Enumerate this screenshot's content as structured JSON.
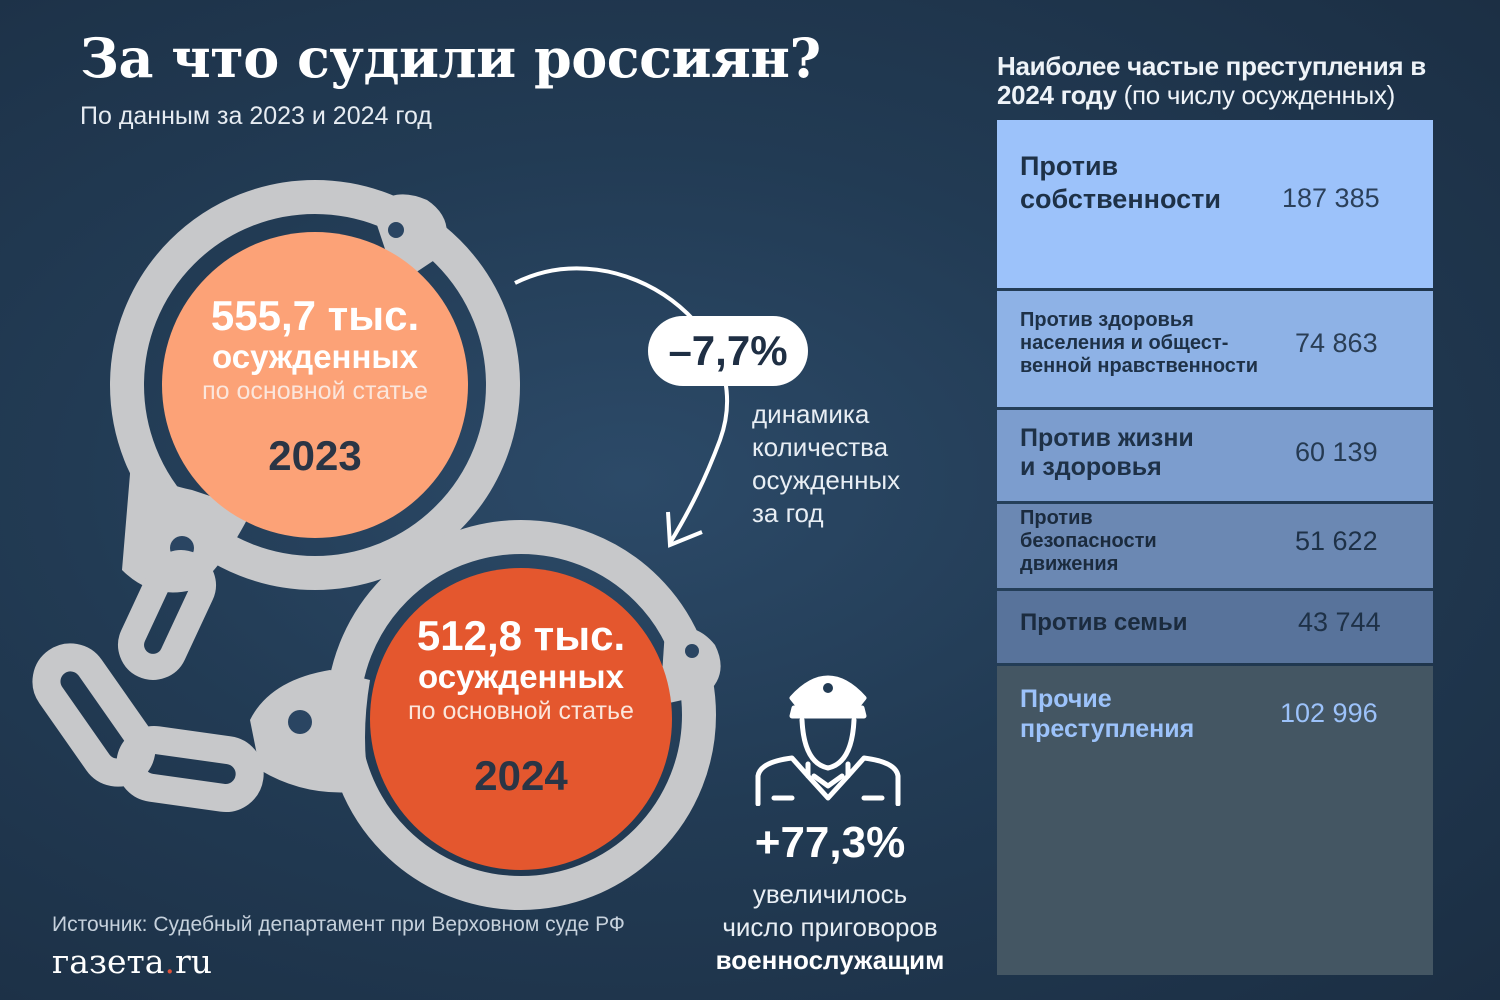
{
  "title": "За что судили россиян?",
  "subtitle": "По данным за 2023 и 2024 год",
  "summary": {
    "y2023": {
      "count": "555,7 тыс.",
      "unit": "осужденных",
      "note": "по основной статье",
      "year": "2023",
      "value": 555.7,
      "color": "#fca277"
    },
    "y2024": {
      "count": "512,8 тыс.",
      "unit": "осужденных",
      "note": "по основной статье",
      "year": "2024",
      "value": 512.8,
      "color": "#e4572e"
    },
    "change": "–7,7%",
    "change_label": [
      "динамика",
      "количества",
      "осужденных",
      "за год"
    ]
  },
  "military": {
    "change": "+77,3%",
    "line1": "увеличилось",
    "line2": "число приговоров",
    "line3": "военнослужащим",
    "icon": "soldier-icon"
  },
  "chart_data": {
    "type": "bar",
    "title_bold": "Наиболее частые преступления в 2024 году",
    "title_rest": "(по числу осужденных)",
    "categories": [
      "Против собственности",
      "Против здоровья населения и общест-венной нравственности",
      "Против жизни и здоровья",
      "Против безопасности движения",
      "Против семьи",
      "Прочие преступления"
    ],
    "category_lines": [
      [
        "Против",
        "собственности"
      ],
      [
        "Против здоровья",
        "населения и общест-",
        "венной нравственности"
      ],
      [
        "Против жизни",
        "и здоровья"
      ],
      [
        "Против",
        "безопасности",
        "движения"
      ],
      [
        "Против семьи"
      ],
      [
        "Прочие",
        "преступления"
      ]
    ],
    "values": [
      187385,
      74863,
      60139,
      51622,
      43744,
      102996
    ],
    "value_labels": [
      "187 385",
      "74 863",
      "60 139",
      "51 622",
      "43 744",
      "102 996"
    ],
    "colors": [
      "#9cc2fa",
      "#8eb2e6",
      "#7c9dce",
      "#6b88b3",
      "#58739b",
      "#445663"
    ]
  },
  "source": "Источник:  Судебный департамент при Верховном суде РФ",
  "logo": {
    "main": "газета",
    "dot": ".",
    "tld": "ru"
  }
}
